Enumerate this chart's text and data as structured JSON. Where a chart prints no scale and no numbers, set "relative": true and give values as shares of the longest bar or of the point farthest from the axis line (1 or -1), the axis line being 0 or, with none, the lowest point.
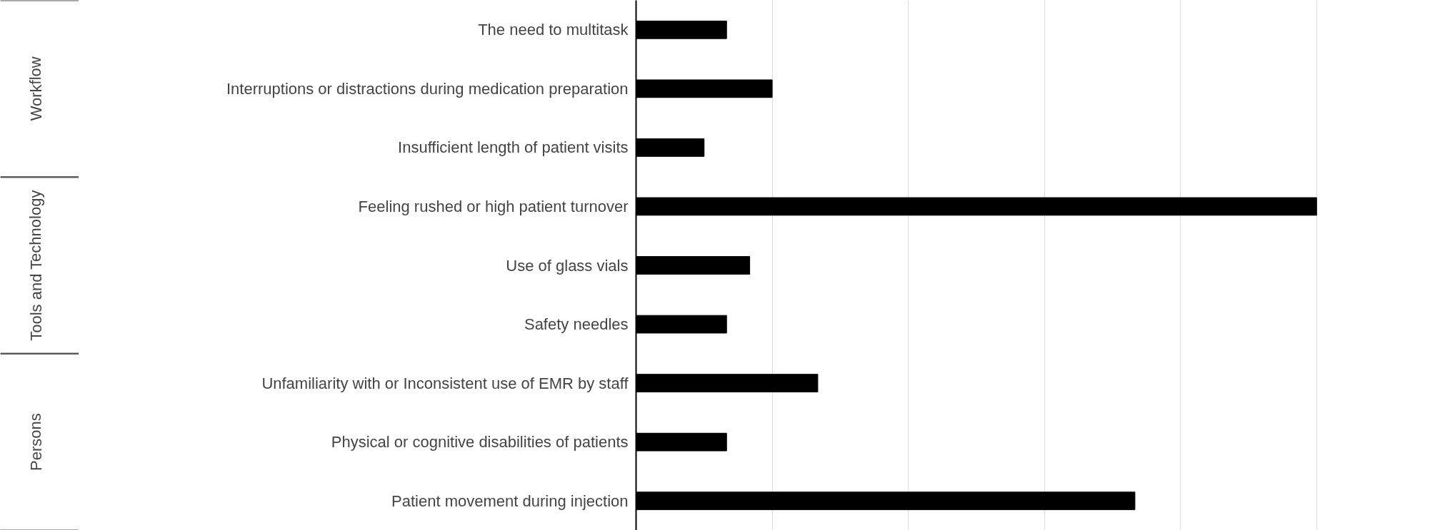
{
  "chart_data": {
    "type": "bar",
    "orientation": "horizontal",
    "relative": true,
    "grid": "x",
    "categories": [
      "The need to multitask",
      "Interruptions or distractions during medication preparation",
      "Insufficient length of patient visits",
      "Feeling rushed or high patient turnover",
      "Use of glass vials",
      "Safety needles",
      "Unfamiliarity with or Inconsistent use of EMR by staff",
      "Physical or cognitive disabilities of patients",
      "Patient movement during injection"
    ],
    "values": [
      0.133,
      0.2,
      0.1,
      1,
      0.167,
      0.133,
      0.267,
      0.133,
      0.733
    ],
    "color": "#000000",
    "annotations": [
      "Workflow",
      "Tools and Technology",
      "Persons"
    ]
  }
}
